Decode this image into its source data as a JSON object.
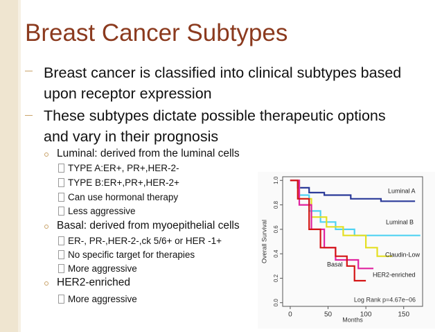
{
  "title": "Breast Cancer Subtypes",
  "bullets": [
    "Breast cancer is classified into clinical subtypes based upon receptor expression",
    "These subtypes dictate possible therapeutic options and vary in their prognosis"
  ],
  "subtypes": [
    {
      "heading": "Luminal: derived from the luminal cells",
      "items": [
        "TYPE A:ER+, PR+,HER-2-",
        "TYPE B:ER+,PR+,HER-2+",
        "Can use hormonal therapy",
        "Less aggressive"
      ]
    },
    {
      "heading": "Basal: derived from myoepithelial cells",
      "items": [
        "ER-, PR-,HER-2-,ck 5/6+ or HER -1+",
        "No specific target for therapies",
        "More aggressive"
      ]
    },
    {
      "heading": "HER2-enriched",
      "items": [
        "More aggressive"
      ]
    }
  ],
  "chart_data": {
    "type": "line",
    "x_label": "Months",
    "y_label": "Overall Survival",
    "annotation": "Log Rank p=4.67e−06",
    "xlim": [
      -10,
      175
    ],
    "ylim": [
      -0.03,
      1.03
    ],
    "xticks": [
      0,
      50,
      100,
      150
    ],
    "yticks": [
      {
        "value": 0,
        "label": "0.0"
      },
      {
        "value": 0.2,
        "label": "0.2"
      },
      {
        "value": 0.4,
        "label": "0.4"
      },
      {
        "value": 0.6,
        "label": "0.6"
      },
      {
        "value": 0.8,
        "label": "0.8"
      },
      {
        "value": 1,
        "label": "1.0"
      }
    ],
    "series": [
      {
        "name": "Luminal A",
        "color": "#2b3a99",
        "x": [
          0,
          10,
          10,
          25,
          25,
          45,
          45,
          80,
          80,
          120,
          120,
          165
        ],
        "values": [
          1,
          1,
          0.94,
          0.94,
          0.9,
          0.9,
          0.88,
          0.88,
          0.85,
          0.85,
          0.83,
          0.83
        ]
      },
      {
        "name": "Luminal B",
        "color": "#4fd2f2",
        "x": [
          0,
          12,
          12,
          25,
          25,
          40,
          40,
          60,
          60,
          85,
          85,
          172
        ],
        "values": [
          1,
          1,
          0.88,
          0.88,
          0.75,
          0.75,
          0.66,
          0.66,
          0.6,
          0.6,
          0.55,
          0.55
        ]
      },
      {
        "name": "Claudin-Low",
        "color": "#e4df22",
        "x": [
          0,
          12,
          12,
          28,
          28,
          48,
          48,
          70,
          70,
          100,
          100,
          115,
          115,
          135
        ],
        "values": [
          1,
          1,
          0.85,
          0.85,
          0.7,
          0.7,
          0.62,
          0.62,
          0.55,
          0.55,
          0.45,
          0.45,
          0.38,
          0.38
        ]
      },
      {
        "name": "HER2-enriched",
        "color": "#e0239f",
        "x": [
          0,
          12,
          12,
          28,
          28,
          45,
          45,
          60,
          60,
          90,
          90,
          110
        ],
        "values": [
          1,
          1,
          0.8,
          0.8,
          0.6,
          0.6,
          0.45,
          0.45,
          0.35,
          0.35,
          0.28,
          0.28
        ]
      },
      {
        "name": "Basal",
        "color": "#d41414",
        "x": [
          0,
          10,
          10,
          25,
          25,
          40,
          40,
          60,
          60,
          75,
          75,
          85,
          85,
          100
        ],
        "values": [
          1,
          1,
          0.85,
          0.85,
          0.6,
          0.6,
          0.45,
          0.45,
          0.38,
          0.38,
          0.3,
          0.3,
          0.18,
          0.18
        ]
      }
    ]
  }
}
